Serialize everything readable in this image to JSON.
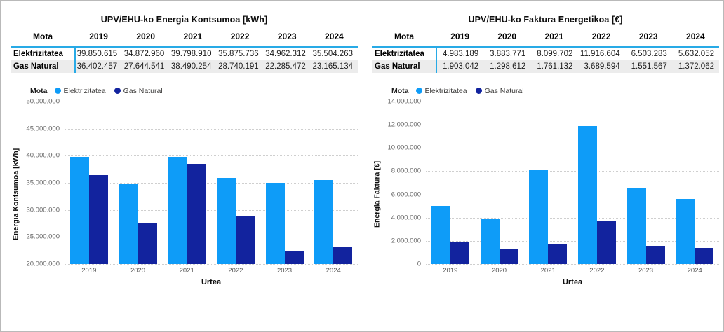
{
  "window": {
    "background": "#ffffff",
    "border_color": "#b9b9b9"
  },
  "accent_colors": {
    "elektrizitatea": "#0e9cf8",
    "gas_natural": "#12239e",
    "table_accent_line": "#28aae6",
    "table_band_bg": "#ececec"
  },
  "tables": [
    {
      "title": "UPV/EHU-ko Energia Kontsumoa [kWh]",
      "columns": [
        "Mota",
        "2019",
        "2020",
        "2021",
        "2022",
        "2023",
        "2024"
      ],
      "rows": [
        {
          "label": "Elektrizitatea",
          "values": [
            "39.850.615",
            "34.872.960",
            "39.798.910",
            "35.875.736",
            "34.962.312",
            "35.504.263"
          ]
        },
        {
          "label": "Gas Natural",
          "values": [
            "36.402.457",
            "27.644.541",
            "38.490.254",
            "28.740.191",
            "22.285.472",
            "23.165.134"
          ]
        }
      ]
    },
    {
      "title": "UPV/EHU-ko Faktura Energetikoa [€]",
      "columns": [
        "Mota",
        "2019",
        "2020",
        "2021",
        "2022",
        "2023",
        "2024"
      ],
      "rows": [
        {
          "label": "Elektrizitatea",
          "values": [
            "4.983.189",
            "3.883.771",
            "8.099.702",
            "11.916.604",
            "6.503.283",
            "5.632.052"
          ]
        },
        {
          "label": "Gas Natural",
          "values": [
            "1.903.042",
            "1.298.612",
            "1.761.132",
            "3.689.594",
            "1.551.567",
            "1.372.062"
          ]
        }
      ]
    }
  ],
  "chart_data": [
    {
      "type": "bar",
      "title": "UPV/EHU-ko Energia Kontsumoa [kWh]",
      "categories": [
        "2019",
        "2020",
        "2021",
        "2022",
        "2023",
        "2024"
      ],
      "series": [
        {
          "name": "Elektrizitatea",
          "color": "#0e9cf8",
          "values": [
            39850615,
            34872960,
            39798910,
            35875736,
            34962312,
            35504263
          ]
        },
        {
          "name": "Gas Natural",
          "color": "#12239e",
          "values": [
            36402457,
            27644541,
            38490254,
            28740191,
            22285472,
            23165134
          ]
        }
      ],
      "xlabel": "Urtea",
      "ylabel": "Energia Kontsumoa [kWh]",
      "ylim": [
        20000000,
        50000000
      ],
      "ytick_values": [
        50000000,
        45000000,
        40000000,
        35000000,
        30000000,
        25000000,
        20000000
      ],
      "ytick_labels": [
        "50.000.000",
        "45.000.000",
        "40.000.000",
        "35.000.000",
        "30.000.000",
        "25.000.000",
        "20.000.000"
      ],
      "legend_title": "Mota",
      "legend_position": "top-left",
      "grid": "dotted horizontal"
    },
    {
      "type": "bar",
      "title": "UPV/EHU-ko Faktura Energetikoa [€]",
      "categories": [
        "2019",
        "2020",
        "2021",
        "2022",
        "2023",
        "2024"
      ],
      "series": [
        {
          "name": "Elektrizitatea",
          "color": "#0e9cf8",
          "values": [
            4983189,
            3883771,
            8099702,
            11916604,
            6503283,
            5632052
          ]
        },
        {
          "name": "Gas Natural",
          "color": "#12239e",
          "values": [
            1903042,
            1298612,
            1761132,
            3689594,
            1551567,
            1372062
          ]
        }
      ],
      "xlabel": "Urtea",
      "ylabel": "Energia Faktura [€]",
      "ylim": [
        0,
        14000000
      ],
      "ytick_values": [
        14000000,
        12000000,
        10000000,
        8000000,
        6000000,
        4000000,
        2000000,
        0
      ],
      "ytick_labels": [
        "14.000.000",
        "12.000.000",
        "10.000.000",
        "8.000.000",
        "6.000.000",
        "4.000.000",
        "2.000.000",
        "0"
      ],
      "legend_title": "Mota",
      "legend_position": "top-left",
      "grid": "dotted horizontal"
    }
  ]
}
